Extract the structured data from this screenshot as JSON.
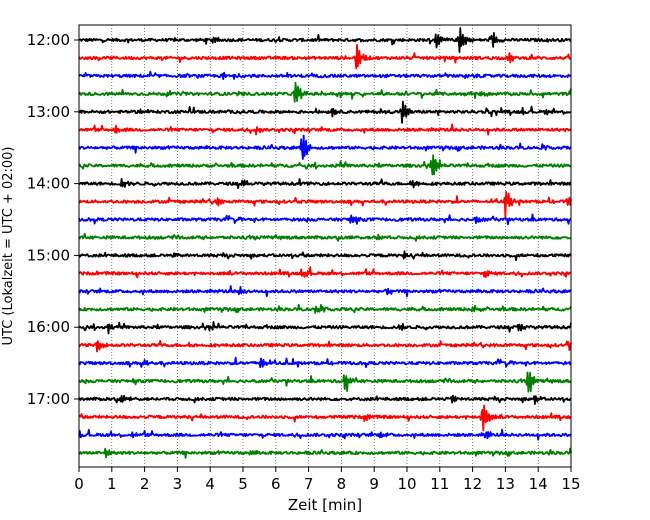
{
  "chart_data": {
    "type": "line",
    "title": "",
    "xlabel": "Zeit  [min]",
    "ylabel": "UTC (Lokalzeit = UTC + 02:00)",
    "xlim": [
      0,
      15
    ],
    "x_ticks": [
      0,
      1,
      2,
      3,
      4,
      5,
      6,
      7,
      8,
      9,
      10,
      11,
      12,
      13,
      14,
      15
    ],
    "x_tick_labels": [
      "0",
      "1",
      "2",
      "3",
      "4",
      "5",
      "6",
      "7",
      "8",
      "9",
      "10",
      "11",
      "12",
      "13",
      "14",
      "15"
    ],
    "y_tick_labels": [
      "12:00",
      "13:00",
      "14:00",
      "15:00",
      "16:00",
      "17:00"
    ],
    "y_tick_rows": [
      0,
      4,
      8,
      12,
      16,
      20
    ],
    "row_interval_minutes": 15,
    "grid": "vertical dotted",
    "trace_colors": [
      "#000000",
      "#ff0000",
      "#0000ff",
      "#008000"
    ],
    "traces": [
      {
        "start": "12:00",
        "color": "#000000",
        "events": [
          {
            "t": 10.9,
            "amp": 0.7
          },
          {
            "t": 11.6,
            "amp": 1.0
          },
          {
            "t": 12.6,
            "amp": 0.6
          },
          {
            "t": 4.1,
            "amp": 0.35
          }
        ]
      },
      {
        "start": "12:15",
        "color": "#ff0000",
        "events": [
          {
            "t": 8.45,
            "amp": 1.1
          },
          {
            "t": 13.1,
            "amp": 0.35
          }
        ]
      },
      {
        "start": "12:30",
        "color": "#0000ff",
        "events": [
          {
            "t": 4.4,
            "amp": 0.25
          },
          {
            "t": 11.8,
            "amp": 0.25
          }
        ]
      },
      {
        "start": "12:45",
        "color": "#008000",
        "events": [
          {
            "t": 6.6,
            "amp": 1.0
          },
          {
            "t": 12.3,
            "amp": 0.25
          }
        ]
      },
      {
        "start": "13:00",
        "color": "#000000",
        "events": [
          {
            "t": 9.85,
            "amp": 0.9
          },
          {
            "t": 7.7,
            "amp": 0.35
          },
          {
            "t": 14.2,
            "amp": 0.3
          }
        ]
      },
      {
        "start": "13:15",
        "color": "#ff0000",
        "events": [
          {
            "t": 1.1,
            "amp": 0.4
          },
          {
            "t": 5.4,
            "amp": 0.3
          }
        ]
      },
      {
        "start": "13:30",
        "color": "#0000ff",
        "events": [
          {
            "t": 6.8,
            "amp": 1.3
          }
        ]
      },
      {
        "start": "13:45",
        "color": "#008000",
        "events": [
          {
            "t": 10.75,
            "amp": 1.1
          }
        ]
      },
      {
        "start": "14:00",
        "color": "#000000",
        "events": [
          {
            "t": 1.3,
            "amp": 0.35
          },
          {
            "t": 5.0,
            "amp": 0.3
          },
          {
            "t": 10.2,
            "amp": 0.25
          }
        ]
      },
      {
        "start": "14:15",
        "color": "#ff0000",
        "events": [
          {
            "t": 13.0,
            "amp": 1.1
          },
          {
            "t": 4.2,
            "amp": 0.3
          },
          {
            "t": 14.9,
            "amp": 0.4
          }
        ]
      },
      {
        "start": "14:30",
        "color": "#0000ff",
        "events": [
          {
            "t": 8.3,
            "amp": 0.35
          },
          {
            "t": 12.1,
            "amp": 0.3
          }
        ]
      },
      {
        "start": "14:45",
        "color": "#008000",
        "events": [
          {
            "t": 9.1,
            "amp": 0.2
          }
        ]
      },
      {
        "start": "15:00",
        "color": "#000000",
        "events": [
          {
            "t": 9.9,
            "amp": 0.25
          },
          {
            "t": 2.9,
            "amp": 0.2
          }
        ]
      },
      {
        "start": "15:15",
        "color": "#ff0000",
        "events": [
          {
            "t": 6.9,
            "amp": 0.25
          },
          {
            "t": 12.4,
            "amp": 0.25
          }
        ]
      },
      {
        "start": "15:30",
        "color": "#0000ff",
        "events": [
          {
            "t": 4.9,
            "amp": 0.3
          },
          {
            "t": 9.4,
            "amp": 0.3
          }
        ]
      },
      {
        "start": "15:45",
        "color": "#008000",
        "events": [
          {
            "t": 7.2,
            "amp": 0.3
          },
          {
            "t": 12.0,
            "amp": 0.3
          }
        ]
      },
      {
        "start": "16:00",
        "color": "#000000",
        "events": [
          {
            "t": 0.9,
            "amp": 0.35
          },
          {
            "t": 9.8,
            "amp": 0.35
          },
          {
            "t": 13.4,
            "amp": 0.3
          }
        ]
      },
      {
        "start": "16:15",
        "color": "#ff0000",
        "events": [
          {
            "t": 0.55,
            "amp": 0.45
          },
          {
            "t": 14.95,
            "amp": 0.4
          }
        ]
      },
      {
        "start": "16:30",
        "color": "#0000ff",
        "events": [
          {
            "t": 5.55,
            "amp": 0.45
          },
          {
            "t": 2.0,
            "amp": 0.25
          }
        ]
      },
      {
        "start": "16:45",
        "color": "#008000",
        "events": [
          {
            "t": 8.1,
            "amp": 0.7
          },
          {
            "t": 13.7,
            "amp": 1.1
          }
        ]
      },
      {
        "start": "17:00",
        "color": "#000000",
        "events": [
          {
            "t": 1.3,
            "amp": 0.3
          },
          {
            "t": 11.4,
            "amp": 0.3
          },
          {
            "t": 13.9,
            "amp": 0.3
          }
        ]
      },
      {
        "start": "17:15",
        "color": "#ff0000",
        "events": [
          {
            "t": 12.3,
            "amp": 1.2
          },
          {
            "t": 8.7,
            "amp": 0.3
          }
        ]
      },
      {
        "start": "17:30",
        "color": "#0000ff",
        "events": [
          {
            "t": 1.6,
            "amp": 0.3
          },
          {
            "t": 12.4,
            "amp": 0.35
          },
          {
            "t": 9.2,
            "amp": 0.25
          }
        ]
      },
      {
        "start": "17:45",
        "color": "#008000",
        "events": [
          {
            "t": 0.8,
            "amp": 0.3
          },
          {
            "t": 5.2,
            "amp": 0.2
          }
        ]
      }
    ]
  }
}
